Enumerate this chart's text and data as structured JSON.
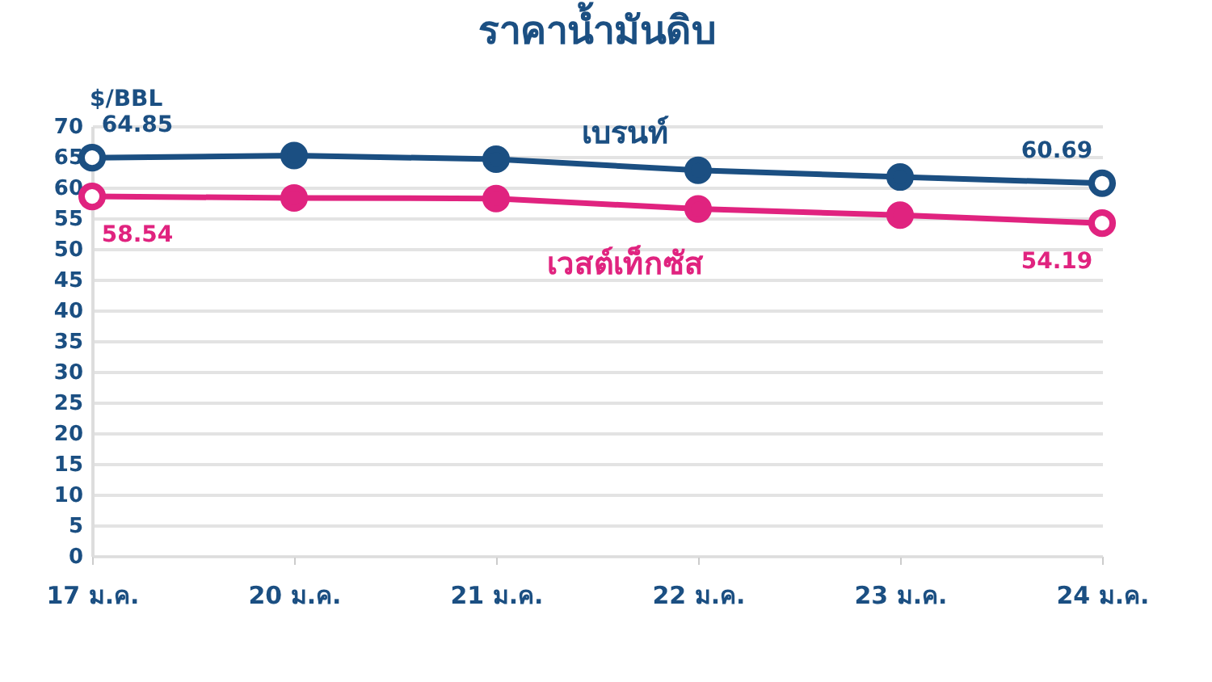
{
  "chart_data": {
    "type": "line",
    "title": "ราคาน้ำมันดิบ",
    "ylabel": "$/BBL",
    "categories": [
      "17 ม.ค.",
      "20 ม.ค.",
      "21 ม.ค.",
      "22 ม.ค.",
      "23 ม.ค.",
      "24 ม.ค."
    ],
    "series": [
      {
        "name": "เบรนท์",
        "color": "#1b4f82",
        "values": [
          64.85,
          65.2,
          64.6,
          62.8,
          61.7,
          60.69
        ]
      },
      {
        "name": "เวสต์เท็กซัส",
        "color": "#e0237f",
        "values": [
          58.54,
          58.3,
          58.2,
          56.5,
          55.5,
          54.19
        ]
      }
    ],
    "ylim": [
      0,
      70
    ],
    "yticks": [
      0,
      5,
      10,
      15,
      20,
      25,
      30,
      35,
      40,
      45,
      50,
      55,
      60,
      65,
      70
    ],
    "grid": "y",
    "marker": "circle",
    "line_style": "solid",
    "legend": false,
    "annotations": [
      {
        "text": "64.85",
        "x": "17 ม.ค.",
        "y": 64.85
      },
      {
        "text": "58.54",
        "x": "17 ม.ค.",
        "y": 58.54
      },
      {
        "text": "60.69",
        "x": "24 ม.ค.",
        "y": 60.69
      },
      {
        "text": "54.19",
        "x": "24 ม.ค.",
        "y": 54.19
      }
    ]
  }
}
